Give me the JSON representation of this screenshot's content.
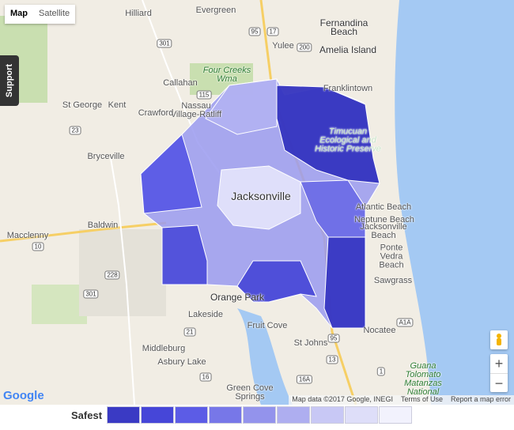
{
  "map_type": {
    "map": "Map",
    "satellite": "Satellite"
  },
  "support": "Support",
  "places": [
    "Hilliard",
    "Evergreen",
    "Fernandina Beach",
    "Amelia Island",
    "Yulee",
    "Four Creeks Wma",
    "Callahan",
    "Nassau Village-Ratliff",
    "St George",
    "Kent",
    "Crawford",
    "Franklintown",
    "Timucuan Ecological and Historic Preserve",
    "Bryceville",
    "Baldwin",
    "Macclenny",
    "Jacksonville",
    "Atlantic Beach",
    "Neptune Beach",
    "Jacksonville Beach",
    "Ponte Vedra Beach",
    "Sawgrass",
    "Orange Park",
    "Lakeside",
    "Fruit Cove",
    "St Johns",
    "Middleburg",
    "Asbury Lake",
    "Nocatee",
    "Green Cove Springs",
    "Guana Tolomato Matanzas National"
  ],
  "road_shields": [
    "95",
    "17",
    "200",
    "301",
    "115",
    "23",
    "10",
    "228",
    "301",
    "21",
    "16",
    "16A",
    "13",
    "A1A",
    "1",
    "95"
  ],
  "legend": {
    "label": "Safest",
    "colors": [
      "#3a3ac4",
      "#4646d8",
      "#5c5ce6",
      "#7777e8",
      "#9393ec",
      "#aeaef0",
      "#c8c8f5",
      "#dedef9",
      "#f2f2fd"
    ]
  },
  "zoom": {
    "in": "+",
    "out": "−"
  },
  "footer": {
    "logo": "Google",
    "map_data": "Map data ©2017 Google, INEGI",
    "terms": "Terms of Use",
    "report": "Report a map error"
  }
}
